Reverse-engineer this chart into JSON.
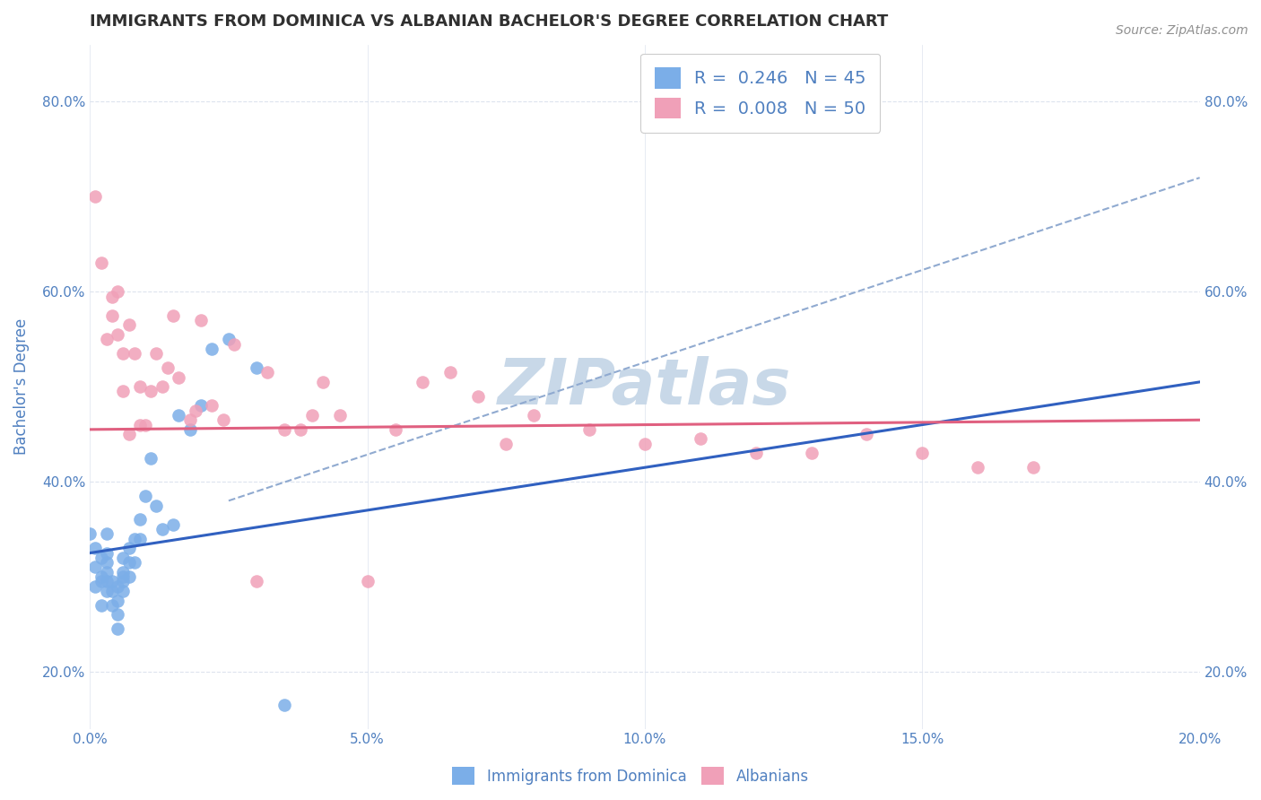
{
  "title": "IMMIGRANTS FROM DOMINICA VS ALBANIAN BACHELOR'S DEGREE CORRELATION CHART",
  "source_text": "Source: ZipAtlas.com",
  "ylabel": "Bachelor's Degree",
  "legend_label_1": "Immigrants from Dominica",
  "legend_label_2": "Albanians",
  "blue_scatter_color": "#7baee8",
  "pink_scatter_color": "#f0a0b8",
  "blue_line_color": "#3060c0",
  "pink_line_color": "#e06080",
  "dashed_line_color": "#90aad0",
  "watermark_color": "#c8d8e8",
  "background_color": "#ffffff",
  "grid_color": "#dde3ee",
  "title_color": "#303030",
  "title_fontsize": 13,
  "axis_label_color": "#5080c0",
  "tick_label_color": "#5080c0",
  "xlim": [
    0.0,
    0.2
  ],
  "ylim": [
    0.14,
    0.86
  ],
  "blue_line_x0": 0.0,
  "blue_line_y0": 0.325,
  "blue_line_x1": 0.2,
  "blue_line_y1": 0.505,
  "pink_line_x0": 0.0,
  "pink_line_y0": 0.455,
  "pink_line_x1": 0.2,
  "pink_line_y1": 0.465,
  "dash_line_x0": 0.025,
  "dash_line_y0": 0.38,
  "dash_line_x1": 0.2,
  "dash_line_y1": 0.72,
  "blue_points_x": [
    0.0,
    0.001,
    0.001,
    0.001,
    0.002,
    0.002,
    0.002,
    0.002,
    0.003,
    0.003,
    0.003,
    0.003,
    0.003,
    0.003,
    0.004,
    0.004,
    0.004,
    0.005,
    0.005,
    0.005,
    0.005,
    0.006,
    0.006,
    0.006,
    0.006,
    0.006,
    0.007,
    0.007,
    0.007,
    0.008,
    0.008,
    0.009,
    0.009,
    0.01,
    0.011,
    0.012,
    0.013,
    0.015,
    0.016,
    0.018,
    0.02,
    0.022,
    0.025,
    0.03,
    0.035
  ],
  "blue_points_y": [
    0.345,
    0.29,
    0.31,
    0.33,
    0.27,
    0.295,
    0.3,
    0.32,
    0.285,
    0.295,
    0.305,
    0.315,
    0.325,
    0.345,
    0.27,
    0.285,
    0.295,
    0.245,
    0.26,
    0.275,
    0.29,
    0.285,
    0.295,
    0.3,
    0.305,
    0.32,
    0.3,
    0.315,
    0.33,
    0.315,
    0.34,
    0.34,
    0.36,
    0.385,
    0.425,
    0.375,
    0.35,
    0.355,
    0.47,
    0.455,
    0.48,
    0.54,
    0.55,
    0.52,
    0.165
  ],
  "pink_points_x": [
    0.001,
    0.002,
    0.003,
    0.004,
    0.004,
    0.005,
    0.005,
    0.006,
    0.006,
    0.007,
    0.007,
    0.008,
    0.009,
    0.009,
    0.01,
    0.011,
    0.012,
    0.013,
    0.014,
    0.015,
    0.016,
    0.018,
    0.019,
    0.02,
    0.022,
    0.024,
    0.026,
    0.03,
    0.032,
    0.035,
    0.038,
    0.04,
    0.042,
    0.045,
    0.05,
    0.055,
    0.06,
    0.065,
    0.07,
    0.075,
    0.08,
    0.09,
    0.1,
    0.11,
    0.12,
    0.13,
    0.14,
    0.15,
    0.16,
    0.17
  ],
  "pink_points_y": [
    0.7,
    0.63,
    0.55,
    0.595,
    0.575,
    0.555,
    0.6,
    0.495,
    0.535,
    0.45,
    0.565,
    0.535,
    0.46,
    0.5,
    0.46,
    0.495,
    0.535,
    0.5,
    0.52,
    0.575,
    0.51,
    0.465,
    0.475,
    0.57,
    0.48,
    0.465,
    0.545,
    0.295,
    0.515,
    0.455,
    0.455,
    0.47,
    0.505,
    0.47,
    0.295,
    0.455,
    0.505,
    0.515,
    0.49,
    0.44,
    0.47,
    0.455,
    0.44,
    0.445,
    0.43,
    0.43,
    0.45,
    0.43,
    0.415,
    0.415
  ]
}
